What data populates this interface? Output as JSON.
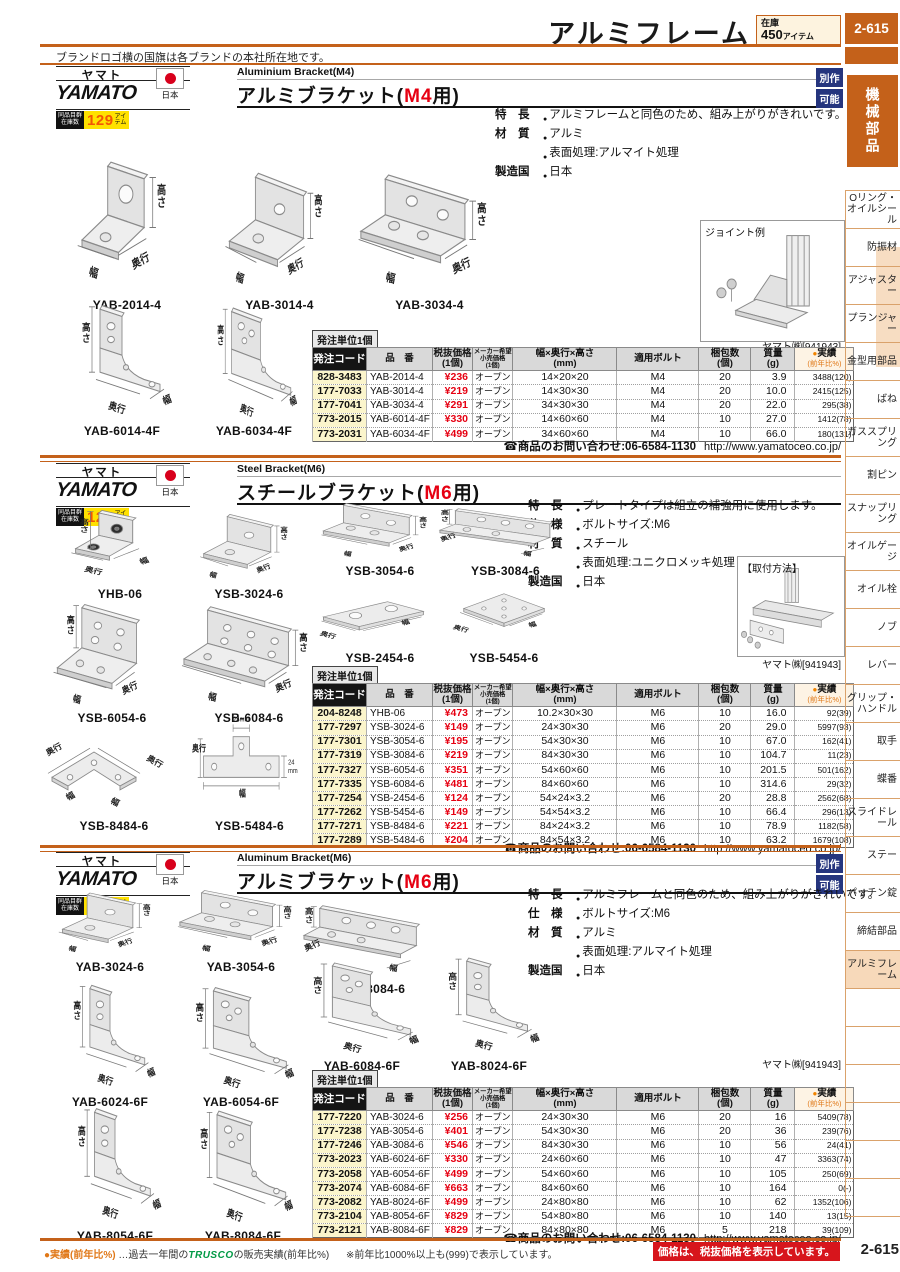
{
  "ui": {
    "bullet": "●",
    "dot": "●"
  },
  "page": {
    "top_note": "ブランドロゴ横の国旗は各ブランドの本社所在地です。",
    "title": "アルミフレーム",
    "stock_badge": {
      "label": "在庫",
      "value": "450",
      "unit": "アイテム"
    },
    "page_no": "2-615"
  },
  "footer": {
    "legend": "●実績(前年比%)",
    "note_pre": "…過去一年間の",
    "trusco": "TRUSCO",
    "note_mid": "の販売実績(前年比%)",
    "note_post": "※前年比1000%以上も(999)で表示しています。",
    "price_note": "価格は、税抜価格を表示しています。",
    "page_no": "2-615"
  },
  "sidebar": {
    "top_page_no": "2-615",
    "top_tab": "機械部品",
    "items": [
      "Oリング・オイルシール",
      "防振材",
      "アジャスター",
      "プランジャー",
      "金型用部品",
      "ばね",
      "ガススプリング",
      "割ピン",
      "スナップリング",
      "オイルゲージ",
      "オイル栓",
      "ノブ",
      "レバー",
      "グリップ・ハンドル",
      "取手",
      "蝶番",
      "スライドレール",
      "ステー",
      "パッチン錠",
      "締結部品",
      "アルミフレーム"
    ],
    "active_item": "アルミフレーム",
    "bottom_page_no": "2-615"
  },
  "brand": {
    "kana": "ヤマト",
    "logo": "YAMATO",
    "flag_label": "日本",
    "stock_label_1": "同品目群",
    "stock_label_2": "在庫数",
    "stock_count": "129",
    "stock_unit_1": "アイ",
    "stock_unit_2": "テム"
  },
  "dim_labels": {
    "height": "高さ",
    "depth": "奥行",
    "width": "幅"
  },
  "table": {
    "order_unit": "発注単位1個",
    "maker_code": "ヤマト㈱[941943]",
    "headers": {
      "code": "発注コード",
      "item": "品　番",
      "price_1": "税抜価格",
      "price_2": "(1個)",
      "msrp_1": "メーカー希望",
      "msrp_2": "小売価格",
      "msrp_3": "(1個)",
      "size_1": "幅×奥行×高さ",
      "size_2": "(mm)",
      "bolt": "適用ボルト",
      "pack_1": "梱包数",
      "pack_2": "(個)",
      "mass_1": "質量",
      "mass_2": "(g)",
      "record_1": "実績",
      "record_2": "(前年比%)"
    },
    "contact": "☎商品のお問い合わせ:06-6584-1130",
    "url": "http://www.yamatoceo.co.jp/"
  },
  "sections": [
    {
      "en": "Aluminium Bracket(M4)",
      "title_pre": "アルミブラケット(",
      "model": "M4",
      "title_post": "用)",
      "custom_badge": [
        "別作",
        "可能"
      ],
      "specs": [
        {
          "label": "特　長",
          "items": [
            "アルミフレームと同色のため、組み上がりがきれいです。"
          ]
        },
        {
          "label": "材　質",
          "items": [
            "アルミ",
            "表面処理:アルマイト処理"
          ]
        },
        {
          "label": "製造国",
          "items": [
            "日本"
          ]
        }
      ],
      "info_box": "ジョイント例",
      "products": [
        {
          "code": "YAB-2014-4",
          "shape": "angleTall"
        },
        {
          "code": "YAB-3014-4",
          "shape": "angle"
        },
        {
          "code": "YAB-3034-4",
          "shape": "angleWide"
        },
        {
          "code": "YAB-6014-4F",
          "shape": "gusset"
        },
        {
          "code": "YAB-6034-4F",
          "shape": "gussetWide"
        }
      ],
      "rows": [
        [
          "828-3483",
          "YAB-2014-4",
          "¥236",
          "オープン",
          "14×20×20",
          "M4",
          "20",
          "3.9",
          "3488(120)"
        ],
        [
          "177-7033",
          "YAB-3014-4",
          "¥219",
          "オープン",
          "14×30×30",
          "M4",
          "20",
          "10.0",
          "2415(125)"
        ],
        [
          "177-7041",
          "YAB-3034-4",
          "¥291",
          "オープン",
          "34×30×30",
          "M4",
          "20",
          "22.0",
          "295(38)"
        ],
        [
          "773-2015",
          "YAB-6014-4F",
          "¥330",
          "オープン",
          "14×60×60",
          "M4",
          "10",
          "27.0",
          "1412(78)"
        ],
        [
          "773-2031",
          "YAB-6034-4F",
          "¥499",
          "オープン",
          "34×60×60",
          "M4",
          "10",
          "66.0",
          "180(131)"
        ]
      ]
    },
    {
      "en": "Steel Bracket(M6)",
      "title_pre": "スチールブラケット(",
      "model": "M6",
      "title_post": "用)",
      "custom_badge": null,
      "specs": [
        {
          "label": "特　長",
          "items": [
            "プレートタイプは組立の補強用に使用します。"
          ]
        },
        {
          "label": "仕　様",
          "items": [
            "ボルトサイズ:M6"
          ]
        },
        {
          "label": "材　質",
          "items": [
            "スチール",
            "表面処理:ユニクロメッキ処理"
          ]
        },
        {
          "label": "製造国",
          "items": [
            "日本"
          ]
        }
      ],
      "info_box": "【取付方法】",
      "products": [
        {
          "code": "YHB-06",
          "shape": "clamp"
        },
        {
          "code": "YSB-3024-6",
          "shape": "angle"
        },
        {
          "code": "YSB-3054-6",
          "shape": "angleWide"
        },
        {
          "code": "YSB-3084-6",
          "shape": "angleLong"
        },
        {
          "code": "YSB-6054-6",
          "shape": "angleBig"
        },
        {
          "code": "YSB-6084-6",
          "shape": "angleBigWide"
        },
        {
          "code": "YSB-2454-6",
          "shape": "plate"
        },
        {
          "code": "YSB-5454-6",
          "shape": "plateSq"
        },
        {
          "code": "YSB-8484-6",
          "shape": "plateL"
        },
        {
          "code": "YSB-5484-6",
          "shape": "plateT",
          "dim_top": "24mm",
          "dim_right": "24",
          "dim_right2": "mm"
        }
      ],
      "rows": [
        [
          "204-8248",
          "YHB-06",
          "¥473",
          "オープン",
          "10.2×30×30",
          "M6",
          "10",
          "16.0",
          "92(39)"
        ],
        [
          "177-7297",
          "YSB-3024-6",
          "¥149",
          "オープン",
          "24×30×30",
          "M6",
          "20",
          "29.0",
          "5997(93)"
        ],
        [
          "177-7301",
          "YSB-3054-6",
          "¥195",
          "オープン",
          "54×30×30",
          "M6",
          "10",
          "67.0",
          "162(41)"
        ],
        [
          "177-7319",
          "YSB-3084-6",
          "¥219",
          "オープン",
          "84×30×30",
          "M6",
          "10",
          "104.7",
          "11(23)"
        ],
        [
          "177-7327",
          "YSB-6054-6",
          "¥351",
          "オープン",
          "54×60×60",
          "M6",
          "10",
          "201.5",
          "501(162)"
        ],
        [
          "177-7335",
          "YSB-6084-6",
          "¥481",
          "オープン",
          "84×60×60",
          "M6",
          "10",
          "314.6",
          "29(32)"
        ],
        [
          "177-7254",
          "YSB-2454-6",
          "¥124",
          "オープン",
          "54×24×3.2",
          "M6",
          "20",
          "28.8",
          "2562(68)"
        ],
        [
          "177-7262",
          "YSB-5454-6",
          "¥149",
          "オープン",
          "54×54×3.2",
          "M6",
          "10",
          "66.4",
          "296(13)"
        ],
        [
          "177-7271",
          "YSB-8484-6",
          "¥221",
          "オープン",
          "84×24×3.2",
          "M6",
          "10",
          "78.9",
          "1182(58)"
        ],
        [
          "177-7289",
          "YSB-5484-6",
          "¥204",
          "オープン",
          "84×54×3.2",
          "M6",
          "10",
          "63.2",
          "1679(108)"
        ]
      ]
    },
    {
      "en": "Aluminum Bracket(M6)",
      "title_pre": "アルミブラケット(",
      "model": "M6",
      "title_post": "用)",
      "custom_badge": [
        "別作",
        "可能"
      ],
      "specs": [
        {
          "label": "特　長",
          "items": [
            "アルミフレームと同色のため、組み上がりがきれいです。"
          ]
        },
        {
          "label": "仕　様",
          "items": [
            "ボルトサイズ:M6"
          ]
        },
        {
          "label": "材　質",
          "items": [
            "アルミ",
            "表面処理:アルマイト処理"
          ]
        },
        {
          "label": "製造国",
          "items": [
            "日本"
          ]
        }
      ],
      "info_box": null,
      "products": [
        {
          "code": "YAB-3024-6",
          "shape": "angle"
        },
        {
          "code": "YAB-3054-6",
          "shape": "angleWide"
        },
        {
          "code": "YAB-3084-6",
          "shape": "angleLong"
        },
        {
          "code": "YAB-6024-6F",
          "shape": "gusset"
        },
        {
          "code": "YAB-6054-6F",
          "shape": "gussetWide"
        },
        {
          "code": "YAB-6084-6F",
          "shape": "gussetWide"
        },
        {
          "code": "YAB-8024-6F",
          "shape": "gusset"
        },
        {
          "code": "YAB-8054-6F",
          "shape": "gusset"
        },
        {
          "code": "YAB-8084-6F",
          "shape": "gussetWide"
        }
      ],
      "rows": [
        [
          "177-7220",
          "YAB-3024-6",
          "¥256",
          "オープン",
          "24×30×30",
          "M6",
          "20",
          "16",
          "5409(78)"
        ],
        [
          "177-7238",
          "YAB-3054-6",
          "¥401",
          "オープン",
          "54×30×30",
          "M6",
          "20",
          "36",
          "239(76)"
        ],
        [
          "177-7246",
          "YAB-3084-6",
          "¥546",
          "オープン",
          "84×30×30",
          "M6",
          "10",
          "56",
          "24(41)"
        ],
        [
          "773-2023",
          "YAB-6024-6F",
          "¥330",
          "オープン",
          "24×60×60",
          "M6",
          "10",
          "47",
          "3363(74)"
        ],
        [
          "773-2058",
          "YAB-6054-6F",
          "¥499",
          "オープン",
          "54×60×60",
          "M6",
          "10",
          "105",
          "250(69)"
        ],
        [
          "773-2074",
          "YAB-6084-6F",
          "¥663",
          "オープン",
          "84×60×60",
          "M6",
          "10",
          "164",
          "0(-)"
        ],
        [
          "773-2082",
          "YAB-8024-6F",
          "¥499",
          "オープン",
          "24×80×80",
          "M6",
          "10",
          "62",
          "1352(106)"
        ],
        [
          "773-2104",
          "YAB-8054-6F",
          "¥829",
          "オープン",
          "54×80×80",
          "M6",
          "10",
          "140",
          "13(15)"
        ],
        [
          "773-2121",
          "YAB-8084-6F",
          "¥829",
          "オープン",
          "84×80×80",
          "M6",
          "5",
          "218",
          "39(109)"
        ]
      ]
    }
  ]
}
